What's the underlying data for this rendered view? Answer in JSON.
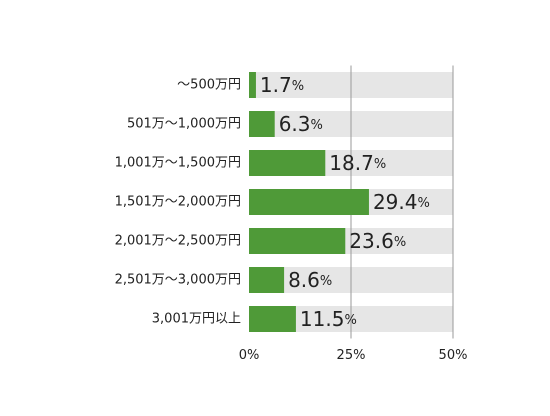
{
  "chart_data": {
    "type": "bar",
    "orientation": "horizontal",
    "categories": [
      "～500万円",
      "501万～1,000万円",
      "1,001万～1,500万円",
      "1,501万～2,000万円",
      "2,001万～2,500万円",
      "2,501万～3,000万円",
      "3,001万円以上"
    ],
    "values": [
      1.7,
      6.3,
      18.7,
      29.4,
      23.6,
      8.6,
      11.5
    ],
    "value_labels": [
      "1.7%",
      "6.3%",
      "18.7%",
      "29.4%",
      "23.6%",
      "8.6%",
      "11.5%"
    ],
    "color": "#4f9a38",
    "xlim": [
      0,
      50
    ],
    "xticks": [
      {
        "value": 0,
        "label": "0%"
      },
      {
        "value": 25,
        "label": "25%"
      },
      {
        "value": 50,
        "label": "50%"
      }
    ],
    "grid": true
  }
}
